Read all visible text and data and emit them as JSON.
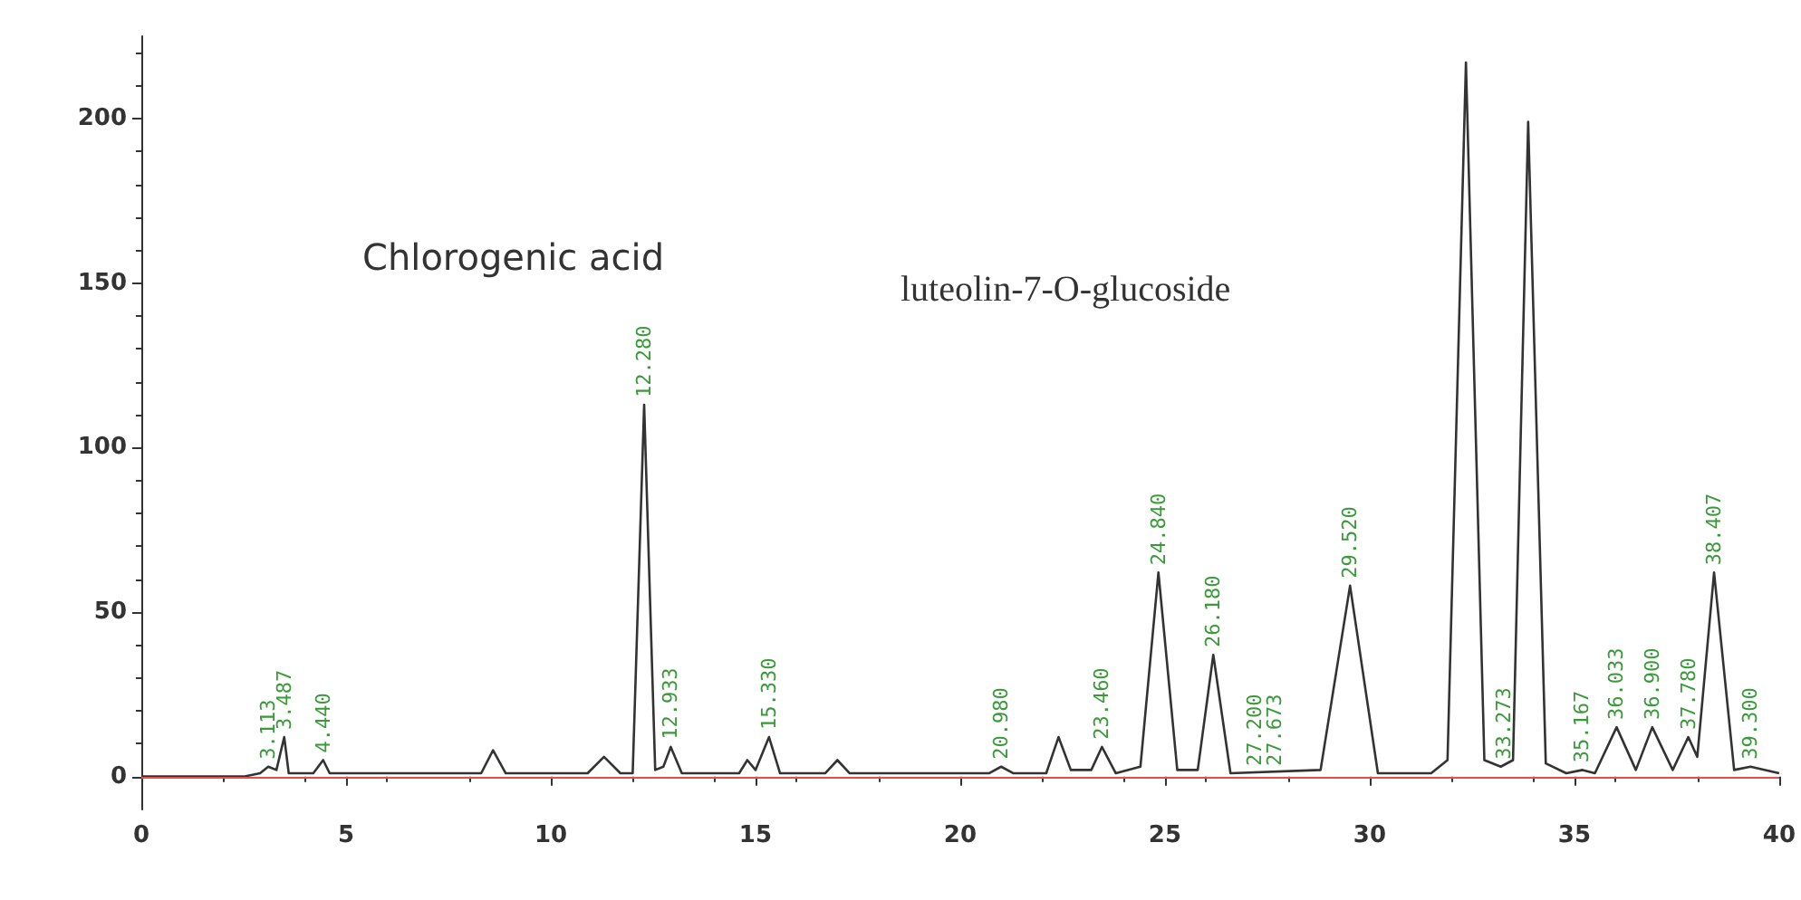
{
  "chart_data": {
    "type": "line",
    "x": [
      0,
      2.5,
      2.9,
      3.1,
      3.3,
      3.49,
      3.6,
      4.2,
      4.44,
      4.6,
      8.3,
      8.59,
      8.9,
      10.9,
      11.3,
      11.7,
      12.0,
      12.28,
      12.55,
      12.75,
      12.93,
      13.2,
      14.6,
      14.8,
      15.0,
      15.33,
      15.6,
      16.7,
      17.0,
      17.3,
      20.7,
      21.0,
      21.3,
      22.1,
      22.4,
      22.7,
      23.2,
      23.46,
      23.8,
      24.4,
      24.84,
      25.3,
      25.8,
      26.18,
      26.6,
      28.8,
      29.52,
      30.2,
      31.5,
      31.9,
      32.35,
      32.8,
      33.2,
      33.5,
      33.87,
      34.3,
      34.8,
      35.2,
      35.5,
      36.03,
      36.5,
      36.9,
      37.4,
      37.78,
      38.0,
      38.41,
      38.9,
      39.3,
      40
    ],
    "values": [
      0,
      0,
      1,
      3,
      2,
      12,
      1,
      1,
      5,
      1,
      1,
      8,
      1,
      1,
      6,
      1,
      1,
      113,
      2,
      3,
      9,
      1,
      1,
      5,
      2,
      12,
      1,
      1,
      5,
      1,
      1,
      3,
      1,
      1,
      12,
      2,
      2,
      9,
      1,
      3,
      62,
      2,
      2,
      37,
      1,
      2,
      58,
      1,
      1,
      5,
      217,
      5,
      3,
      5,
      199,
      4,
      1,
      2,
      1,
      15,
      2,
      15,
      2,
      12,
      6,
      62,
      2,
      3,
      1
    ],
    "color": "#333333",
    "xlim": [
      0,
      40
    ],
    "xticks": [
      0,
      5,
      10,
      15,
      20,
      25,
      30,
      35,
      40
    ],
    "ylim": [
      -10,
      225
    ],
    "yticks": [
      0,
      50,
      100,
      150,
      200
    ],
    "grid": false,
    "marker": "none",
    "line_style": "solid",
    "ref_lines": [
      {
        "axis": "y",
        "value": 0,
        "label": null,
        "color": "#e05050"
      }
    ],
    "annotations": [
      "Chlorogenic acid",
      "luteolin-7-O-glucoside",
      {
        "text": "3.113",
        "x": 3.1,
        "y": 3
      },
      {
        "text": "3.487",
        "x": 3.49,
        "y": 12
      },
      {
        "text": "4.440",
        "x": 4.44,
        "y": 5
      },
      {
        "text": "12.280",
        "x": 12.28,
        "y": 113
      },
      {
        "text": "12.933",
        "x": 12.93,
        "y": 9
      },
      {
        "text": "15.330",
        "x": 15.33,
        "y": 12
      },
      {
        "text": "20.980",
        "x": 21.0,
        "y": 3
      },
      {
        "text": "23.460",
        "x": 23.46,
        "y": 9
      },
      {
        "text": "24.840",
        "x": 24.84,
        "y": 62
      },
      {
        "text": "26.180",
        "x": 26.18,
        "y": 37
      },
      {
        "text": "27.200",
        "x": 27.2,
        "y": 1
      },
      {
        "text": "27.673",
        "x": 27.67,
        "y": 1
      },
      {
        "text": "29.520",
        "x": 29.52,
        "y": 58
      },
      {
        "text": "33.273",
        "x": 33.27,
        "y": 3
      },
      {
        "text": "35.167",
        "x": 35.17,
        "y": 2
      },
      {
        "text": "36.033",
        "x": 36.03,
        "y": 15
      },
      {
        "text": "36.900",
        "x": 36.9,
        "y": 15
      },
      {
        "text": "37.780",
        "x": 37.78,
        "y": 12
      },
      {
        "text": "38.407",
        "x": 38.41,
        "y": 62
      },
      {
        "text": "39.300",
        "x": 39.3,
        "y": 3
      }
    ]
  }
}
